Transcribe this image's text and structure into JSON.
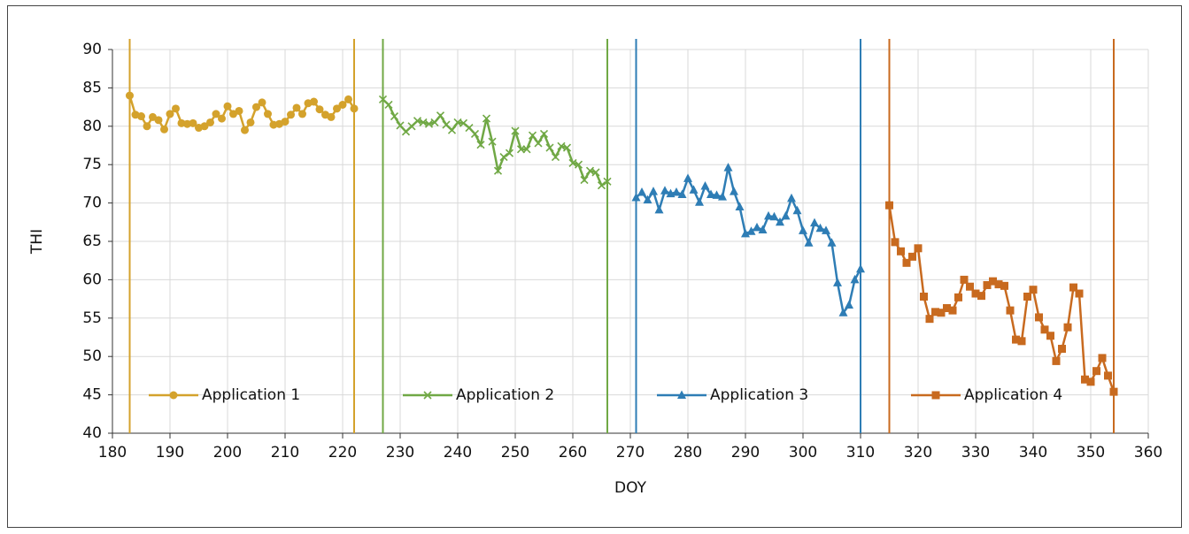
{
  "chart_data": {
    "type": "line",
    "x_label": "DOY",
    "y_label": "THI",
    "xlim": [
      180,
      360
    ],
    "xticks": [
      180,
      190,
      200,
      210,
      220,
      230,
      240,
      250,
      260,
      270,
      280,
      290,
      300,
      310,
      320,
      330,
      340,
      350,
      360
    ],
    "ylim": [
      40,
      90
    ],
    "yticks": [
      40,
      45,
      50,
      55,
      60,
      65,
      70,
      75,
      80,
      85,
      90
    ],
    "grid": true,
    "legend": "bottom",
    "series": [
      {
        "name": "Application 1",
        "color": "#d4a22c",
        "marker": "circle",
        "x": [
          183,
          184,
          185,
          186,
          187,
          188,
          189,
          190,
          191,
          192,
          193,
          194,
          195,
          196,
          197,
          198,
          199,
          200,
          201,
          202,
          203,
          204,
          205,
          206,
          207,
          208,
          209,
          210,
          211,
          212,
          213,
          214,
          215,
          216,
          217,
          218,
          219,
          220,
          221,
          222
        ],
        "values": [
          84,
          81.5,
          81.3,
          80,
          81.2,
          80.8,
          79.6,
          81.6,
          82.3,
          80.4,
          80.3,
          80.4,
          79.8,
          80,
          80.5,
          81.6,
          81,
          82.6,
          81.6,
          82,
          79.5,
          80.5,
          82.5,
          83.1,
          81.6,
          80.2,
          80.3,
          80.6,
          81.5,
          82.4,
          81.6,
          83,
          83.2,
          82.2,
          81.5,
          81.2,
          82.3,
          82.8,
          83.5,
          82.3
        ]
      },
      {
        "name": "Application 2",
        "color": "#70a845",
        "marker": "x",
        "x": [
          227,
          228,
          229,
          230,
          231,
          232,
          233,
          234,
          235,
          236,
          237,
          238,
          239,
          240,
          241,
          242,
          243,
          244,
          245,
          246,
          247,
          248,
          249,
          250,
          251,
          252,
          253,
          254,
          255,
          256,
          257,
          258,
          259,
          260,
          261,
          262,
          263,
          264,
          265,
          266
        ],
        "values": [
          83.5,
          82.8,
          81.3,
          80.1,
          79.3,
          80,
          80.7,
          80.5,
          80.3,
          80.5,
          81.4,
          80.2,
          79.5,
          80.5,
          80.4,
          79.8,
          79,
          77.6,
          81,
          78,
          74.2,
          76,
          76.5,
          79.4,
          77,
          77,
          78.8,
          77.8,
          79,
          77.2,
          76,
          77.4,
          77.2,
          75.2,
          75,
          73,
          74.2,
          74,
          72.3,
          72.8
        ]
      },
      {
        "name": "Application 3",
        "color": "#2e7db5",
        "marker": "triangle",
        "x": [
          271,
          272,
          273,
          274,
          275,
          276,
          277,
          278,
          279,
          280,
          281,
          282,
          283,
          284,
          285,
          286,
          287,
          288,
          289,
          290,
          291,
          292,
          293,
          294,
          295,
          296,
          297,
          298,
          299,
          300,
          301,
          302,
          303,
          304,
          305,
          306,
          307,
          308,
          309,
          310
        ],
        "values": [
          70.7,
          71.4,
          70.4,
          71.5,
          69.1,
          71.6,
          71.2,
          71.4,
          71.1,
          73.2,
          71.7,
          70.1,
          72.2,
          71.1,
          71,
          70.8,
          74.6,
          71.5,
          69.5,
          66,
          66.3,
          66.8,
          66.5,
          68.3,
          68.2,
          67.5,
          68.3,
          70.6,
          69,
          66.4,
          64.8,
          67.4,
          66.7,
          66.4,
          64.8,
          59.6,
          55.7,
          56.7,
          60,
          61.4
        ]
      },
      {
        "name": "Application 4",
        "color": "#c86a1f",
        "marker": "square",
        "x": [
          315,
          316,
          317,
          318,
          319,
          320,
          321,
          322,
          323,
          324,
          325,
          326,
          327,
          328,
          329,
          330,
          331,
          332,
          333,
          334,
          335,
          336,
          337,
          338,
          339,
          340,
          341,
          342,
          343,
          344,
          345,
          346,
          347,
          348,
          349,
          350,
          351,
          352,
          353,
          354
        ],
        "values": [
          69.7,
          64.9,
          63.7,
          62.2,
          63,
          64.1,
          57.8,
          54.9,
          55.8,
          55.7,
          56.3,
          56,
          57.7,
          60,
          59.1,
          58.2,
          57.9,
          59.3,
          59.8,
          59.4,
          59.2,
          56,
          52.2,
          52,
          57.8,
          58.7,
          55.1,
          53.5,
          52.7,
          49.4,
          51,
          53.8,
          59,
          58.2,
          47,
          46.7,
          48.1,
          49.8,
          47.5,
          45.4
        ]
      }
    ]
  }
}
